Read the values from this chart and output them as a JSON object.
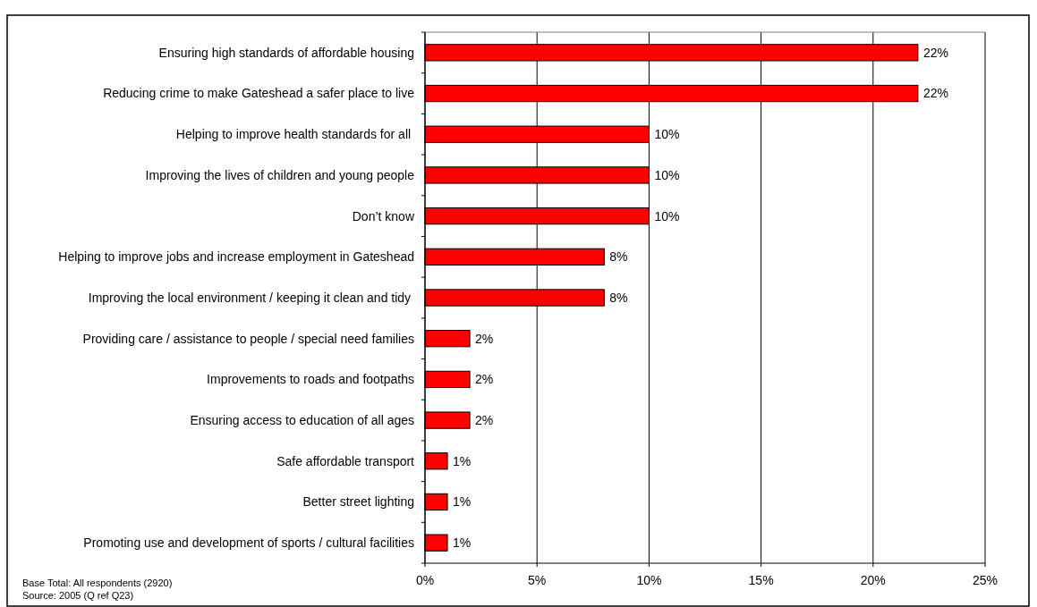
{
  "chart_data": {
    "type": "bar",
    "orientation": "horizontal",
    "categories": [
      "Ensuring high standards of affordable housing",
      "Reducing crime to make Gateshead a safer place to live",
      "Helping to improve health standards for all ",
      "Improving the lives of children and young people",
      "Don’t know",
      "Helping to improve jobs and increase employment in Gateshead",
      "Improving the local environment / keeping it clean and tidy ",
      "Providing care / assistance to people / special need families",
      "Improvements to roads and footpaths",
      "Ensuring access to education of all ages",
      "Safe affordable transport",
      "Better street lighting",
      "Promoting use and development of sports / cultural facilities"
    ],
    "values": [
      22,
      22,
      10,
      10,
      10,
      8,
      8,
      2,
      2,
      2,
      1,
      1,
      1
    ],
    "value_labels": [
      "22%",
      "22%",
      "10%",
      "10%",
      "10%",
      "8%",
      "8%",
      "2%",
      "2%",
      "2%",
      "1%",
      "1%",
      "1%"
    ],
    "color": "#ff0000",
    "xlim": [
      0,
      25
    ],
    "xticks": [
      {
        "value": 0,
        "label": "0%"
      },
      {
        "value": 5,
        "label": "5%"
      },
      {
        "value": 10,
        "label": "10%"
      },
      {
        "value": 15,
        "label": "15%"
      },
      {
        "value": 20,
        "label": "20%"
      },
      {
        "value": 25,
        "label": "25%"
      }
    ],
    "grid": "x",
    "annotations": [
      "Base Total: All respondents (2920)",
      "Source: 2005 (Q ref Q23)"
    ]
  }
}
